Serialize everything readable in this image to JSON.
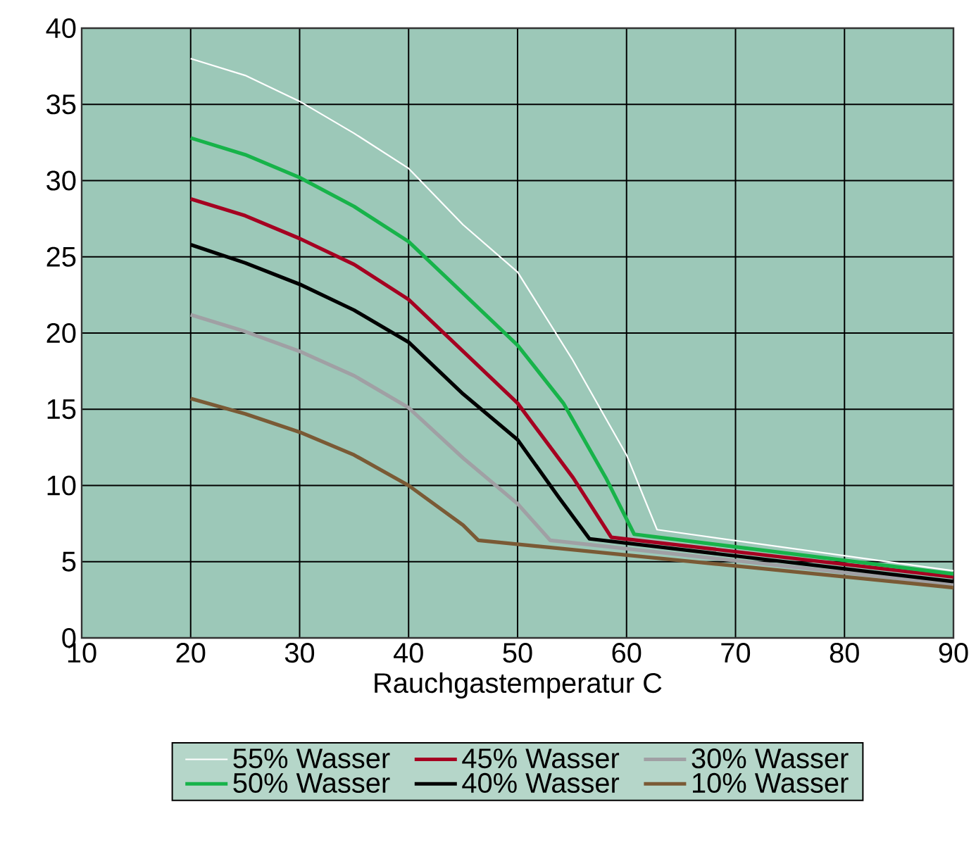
{
  "chart_data": {
    "type": "line",
    "xlabel": "Rauchgastemperatur  C",
    "xlim": [
      10,
      90
    ],
    "ylim": [
      0,
      40
    ],
    "xticks": [
      10,
      20,
      30,
      40,
      50,
      60,
      70,
      80,
      90
    ],
    "yticks": [
      0,
      5,
      10,
      15,
      20,
      25,
      30,
      35,
      40
    ],
    "grid": true,
    "legend": "bottom",
    "series": [
      {
        "name": "55% Wasser",
        "color": "#ffffff",
        "x": [
          20,
          25,
          30,
          35,
          40,
          45,
          50,
          55,
          60,
          62.8,
          90
        ],
        "values": [
          38.0,
          36.9,
          35.2,
          33.1,
          30.8,
          27.1,
          24.0,
          18.3,
          12.0,
          7.1,
          4.4
        ]
      },
      {
        "name": "50% Wasser",
        "color": "#17b34a",
        "x": [
          20,
          25,
          30,
          35,
          40,
          45,
          50,
          54.2,
          58.1,
          60.7,
          90
        ],
        "values": [
          32.8,
          31.7,
          30.2,
          28.3,
          26.0,
          22.6,
          19.2,
          15.4,
          10.5,
          6.8,
          4.2
        ]
      },
      {
        "name": "45% Wasser",
        "color": "#a50021",
        "x": [
          20,
          25,
          30,
          35,
          40,
          45,
          50,
          55.1,
          58.6,
          90
        ],
        "values": [
          28.8,
          27.7,
          26.2,
          24.5,
          22.2,
          18.8,
          15.4,
          10.5,
          6.6,
          4.0
        ]
      },
      {
        "name": "40% Wasser",
        "color": "#000000",
        "x": [
          20,
          25,
          30,
          35,
          40,
          45,
          50,
          53.8,
          56.6,
          90
        ],
        "values": [
          25.8,
          24.6,
          23.2,
          21.5,
          19.4,
          16.0,
          13.0,
          9.2,
          6.5,
          3.7
        ]
      },
      {
        "name": "30% Wasser",
        "color": "#a0a0a4",
        "x": [
          20,
          25,
          30,
          35,
          40,
          45,
          50,
          53,
          90
        ],
        "values": [
          21.2,
          20.1,
          18.8,
          17.2,
          15.1,
          11.8,
          8.8,
          6.4,
          3.5
        ]
      },
      {
        "name": "10% Wasser",
        "color": "#7a5a35",
        "x": [
          20,
          25,
          30,
          35,
          40,
          45,
          46.4,
          90
        ],
        "values": [
          15.7,
          14.7,
          13.5,
          12.0,
          10.0,
          7.4,
          6.4,
          3.3
        ]
      }
    ]
  }
}
